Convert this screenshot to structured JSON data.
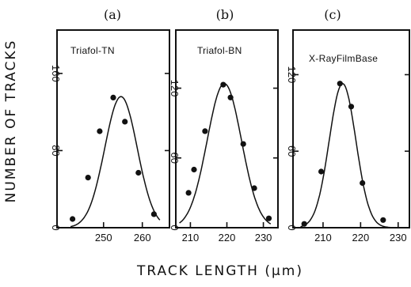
{
  "chart_data": [
    {
      "type": "scatter",
      "panel": "(a)",
      "sample": "Triafol-TN",
      "xlabel": "TRACK LENGTH (μm)",
      "ylabel": "NUMBER OF TRACKS",
      "xlim": [
        238,
        267
      ],
      "ylim": [
        0,
        205
      ],
      "xticks": [
        250,
        260
      ],
      "yticks": [
        0,
        80,
        160
      ],
      "series": [
        {
          "x": [
            242,
            246,
            249,
            252.5,
            255.5,
            259,
            263
          ],
          "y": [
            9,
            52,
            100,
            135,
            110,
            57,
            14
          ]
        }
      ],
      "fit": {
        "mean": 254.5,
        "peak": 136,
        "sigma": 4.2,
        "xrange": [
          241.5,
          264.5
        ]
      }
    },
    {
      "type": "scatter",
      "panel": "(b)",
      "sample": "Triafol-BN",
      "xlim": [
        206,
        234
      ],
      "ylim": [
        0,
        170
      ],
      "xticks": [
        210,
        220,
        230
      ],
      "yticks": [
        0,
        60,
        120
      ],
      "series": [
        {
          "x": [
            209.5,
            211,
            214,
            219,
            221,
            224.5,
            227.5,
            231.5
          ],
          "y": [
            30,
            50,
            83,
            123,
            112,
            72,
            34,
            8
          ]
        }
      ],
      "fit": {
        "mean": 219.3,
        "peak": 124,
        "sigma": 4.7,
        "xrange": [
          207,
          232
        ]
      }
    },
    {
      "type": "scatter",
      "panel": "(c)",
      "sample": "X-RayFilmBase",
      "xlim": [
        202,
        233
      ],
      "ylim": [
        0,
        155
      ],
      "xticks": [
        210,
        220,
        230
      ],
      "yticks": [
        0,
        60,
        120
      ],
      "series": [
        {
          "x": [
            205,
            209.5,
            214.5,
            217.5,
            220.5,
            226
          ],
          "y": [
            3,
            44,
            113,
            95,
            35,
            6
          ]
        }
      ],
      "fit": {
        "mean": 215.2,
        "peak": 113,
        "sigma": 3.55,
        "xrange": [
          204,
          228
        ]
      }
    }
  ]
}
